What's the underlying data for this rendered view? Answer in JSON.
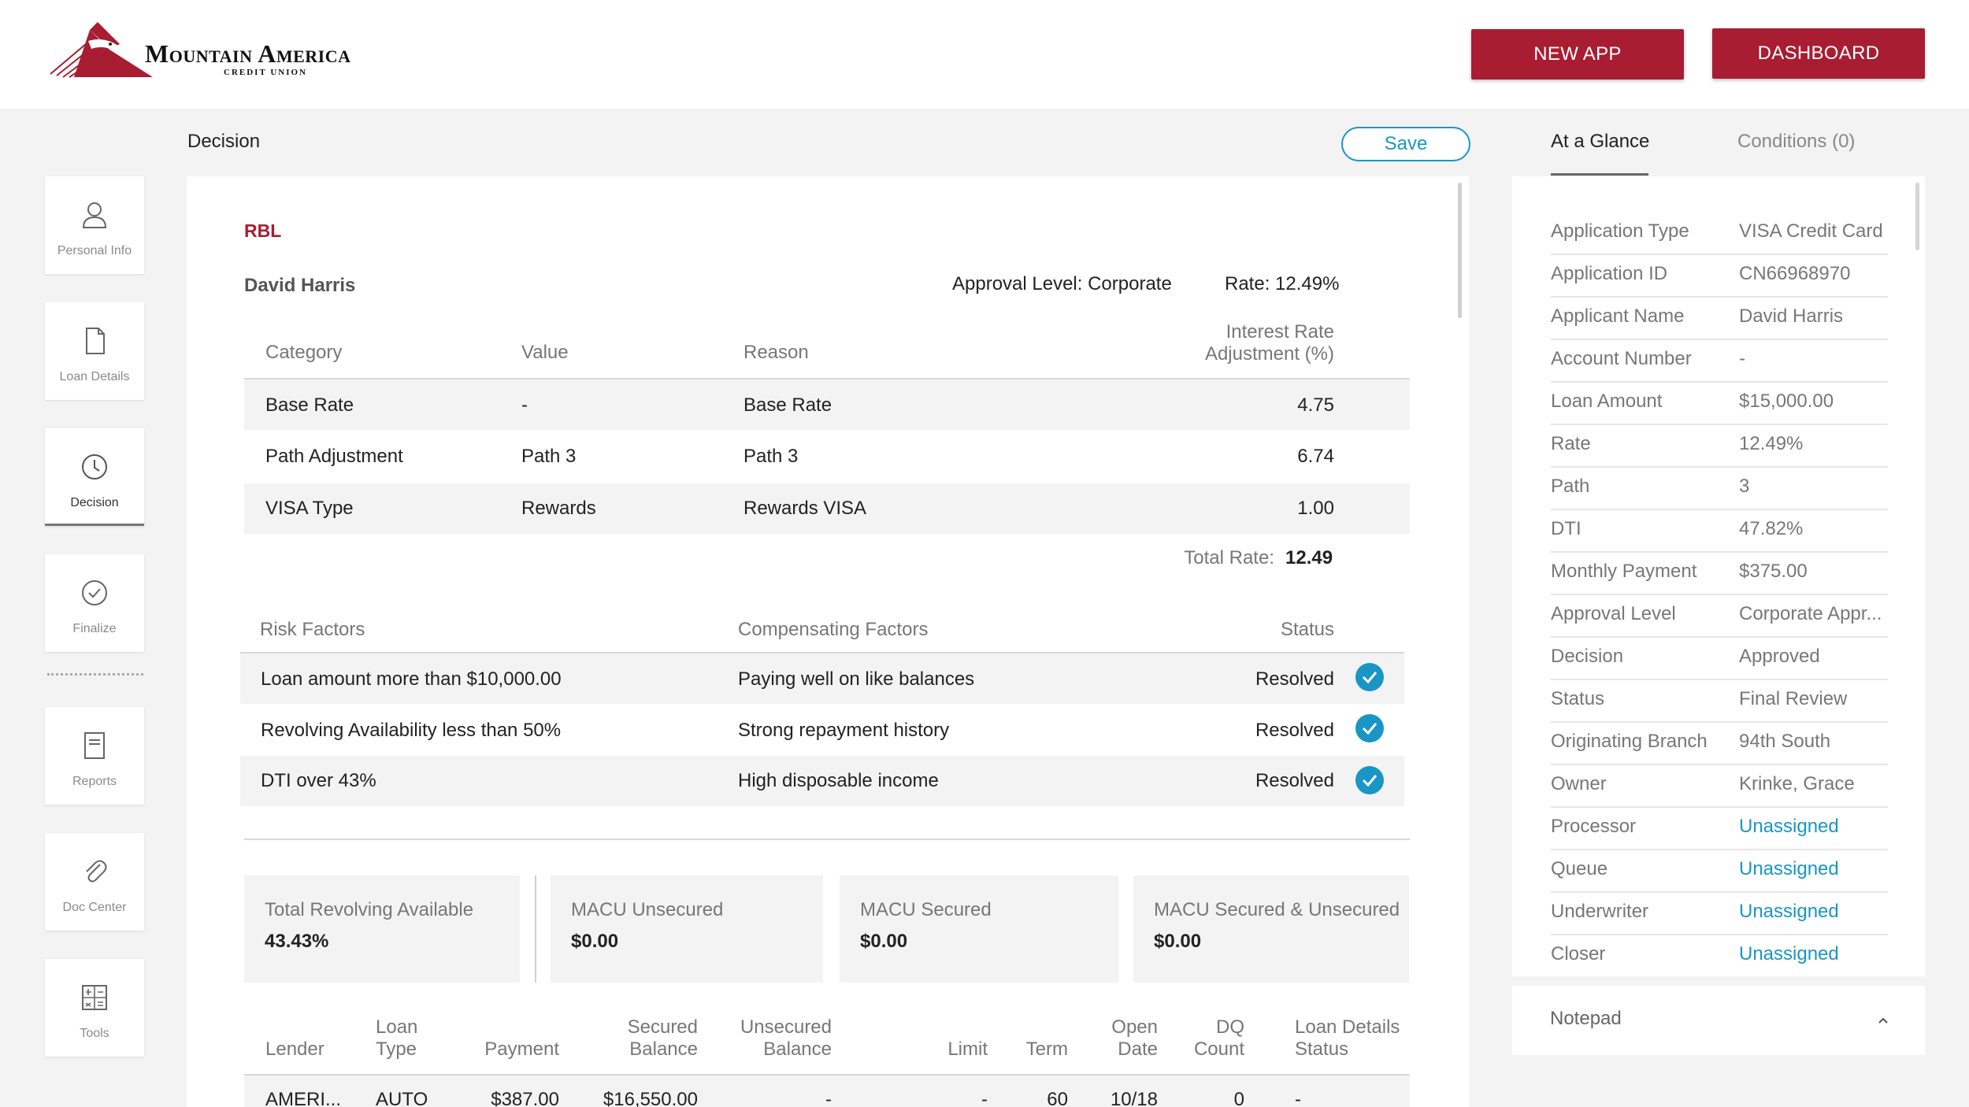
{
  "header": {
    "brand_name": "Mountain America",
    "brand_sub": "CREDIT UNION",
    "new_app_label": "NEW APP",
    "dashboard_label": "DASHBOARD"
  },
  "sidebar": {
    "items": [
      {
        "label": "Personal Info",
        "icon": "person-icon"
      },
      {
        "label": "Loan Details",
        "icon": "document-icon"
      },
      {
        "label": "Decision",
        "icon": "clock-icon",
        "active": true
      },
      {
        "label": "Finalize",
        "icon": "check-circle-icon"
      },
      {
        "label": "Reports",
        "icon": "report-icon"
      },
      {
        "label": "Doc Center",
        "icon": "paperclip-icon"
      },
      {
        "label": "Tools",
        "icon": "calculator-icon"
      }
    ]
  },
  "main": {
    "title": "Decision",
    "save_label": "Save",
    "product_code": "RBL",
    "applicant": "David Harris",
    "approval_level": "Approval Level: Corporate",
    "rate": "Rate: 12.49%",
    "rate_table": {
      "headers": [
        "Category",
        "Value",
        "Reason",
        "Interest Rate",
        "Adjustment (%)"
      ],
      "rows": [
        {
          "category": "Base Rate",
          "value": "-",
          "reason": "Base Rate",
          "adjustment": "4.75"
        },
        {
          "category": "Path Adjustment",
          "value": "Path 3",
          "reason": "Path 3",
          "adjustment": "6.74"
        },
        {
          "category": "VISA Type",
          "value": "Rewards",
          "reason": "Rewards VISA",
          "adjustment": "1.00"
        }
      ],
      "total_label": "Total Rate:",
      "total_value": "12.49"
    },
    "risk_table": {
      "headers": [
        "Risk Factors",
        "Compensating Factors",
        "Status"
      ],
      "rows": [
        {
          "risk": "Loan amount more than $10,000.00",
          "compensating": "Paying well on like balances",
          "status": "Resolved"
        },
        {
          "risk": "Revolving Availability less than 50%",
          "compensating": "Strong repayment history",
          "status": "Resolved"
        },
        {
          "risk": "DTI over 43%",
          "compensating": "High disposable income",
          "status": "Resolved"
        }
      ]
    },
    "stats": [
      {
        "label": "Total Revolving Available",
        "value": "43.43%"
      },
      {
        "label": "MACU Unsecured",
        "value": "$0.00"
      },
      {
        "label": "MACU Secured",
        "value": "$0.00"
      },
      {
        "label": "MACU Secured & Unsecured",
        "value": "$0.00"
      }
    ],
    "tradelines": {
      "headers": {
        "lender": "Lender",
        "loan_type_1": "Loan",
        "loan_type_2": "Type",
        "payment": "Payment",
        "secured_1": "Secured",
        "secured_2": "Balance",
        "unsecured_1": "Unsecured",
        "unsecured_2": "Balance",
        "limit": "Limit",
        "term": "Term",
        "open_1": "Open",
        "open_2": "Date",
        "dq_1": "DQ",
        "dq_2": "Count",
        "status_1": "Loan Details",
        "status_2": "Status"
      },
      "rows": [
        {
          "lender": "AMERI...",
          "loan_type": "AUTO",
          "payment": "$387.00",
          "secured": "$16,550.00",
          "unsecured": "-",
          "limit": "-",
          "term": "60",
          "open": "10/18",
          "dq": "0",
          "status": "-"
        }
      ]
    }
  },
  "side_panel": {
    "tabs": {
      "glance": "At a Glance",
      "conditions": "Conditions  (0)"
    },
    "rows": [
      {
        "label": "Application Type",
        "value": "VISA Credit Card"
      },
      {
        "label": "Application ID",
        "value": "CN66968970"
      },
      {
        "label": "Applicant Name",
        "value": "David Harris"
      },
      {
        "label": "Account Number",
        "value": "-"
      },
      {
        "label": "Loan Amount",
        "value": "$15,000.00"
      },
      {
        "label": "Rate",
        "value": "12.49%"
      },
      {
        "label": "Path",
        "value": "3"
      },
      {
        "label": "DTI",
        "value": "47.82%"
      },
      {
        "label": "Monthly Payment",
        "value": "$375.00"
      },
      {
        "label": "Approval Level",
        "value": "Corporate Appr..."
      },
      {
        "label": "Decision",
        "value": "Approved"
      },
      {
        "label": "Status",
        "value": "Final Review"
      },
      {
        "label": "Originating Branch",
        "value": "94th South"
      },
      {
        "label": "Owner",
        "value": "Krinke, Grace"
      },
      {
        "label": "Processor",
        "value": "Unassigned",
        "link": true
      },
      {
        "label": "Queue",
        "value": "Unassigned",
        "link": true
      },
      {
        "label": "Underwriter",
        "value": "Unassigned",
        "link": true
      },
      {
        "label": "Closer",
        "value": "Unassigned",
        "link": true
      }
    ],
    "notepad_label": "Notepad"
  },
  "colors": {
    "brand_red": "#a81d32",
    "accent_blue": "#1996c6"
  }
}
